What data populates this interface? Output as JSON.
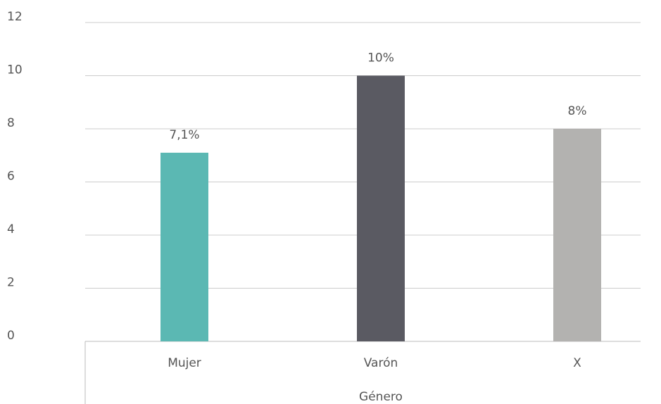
{
  "chart_data": {
    "type": "bar",
    "x_label": "Género",
    "categories": [
      "Mujer",
      "Varón",
      "X"
    ],
    "values": [
      7.1,
      10,
      8
    ],
    "value_labels": [
      "7,1%",
      "10%",
      "8%"
    ],
    "colors": [
      "#5bb8b3",
      "#5a5a62",
      "#b3b2b0"
    ],
    "ylim": [
      0,
      12
    ],
    "yticks": [
      0,
      2,
      4,
      6,
      8,
      10,
      12
    ],
    "grid": true
  }
}
